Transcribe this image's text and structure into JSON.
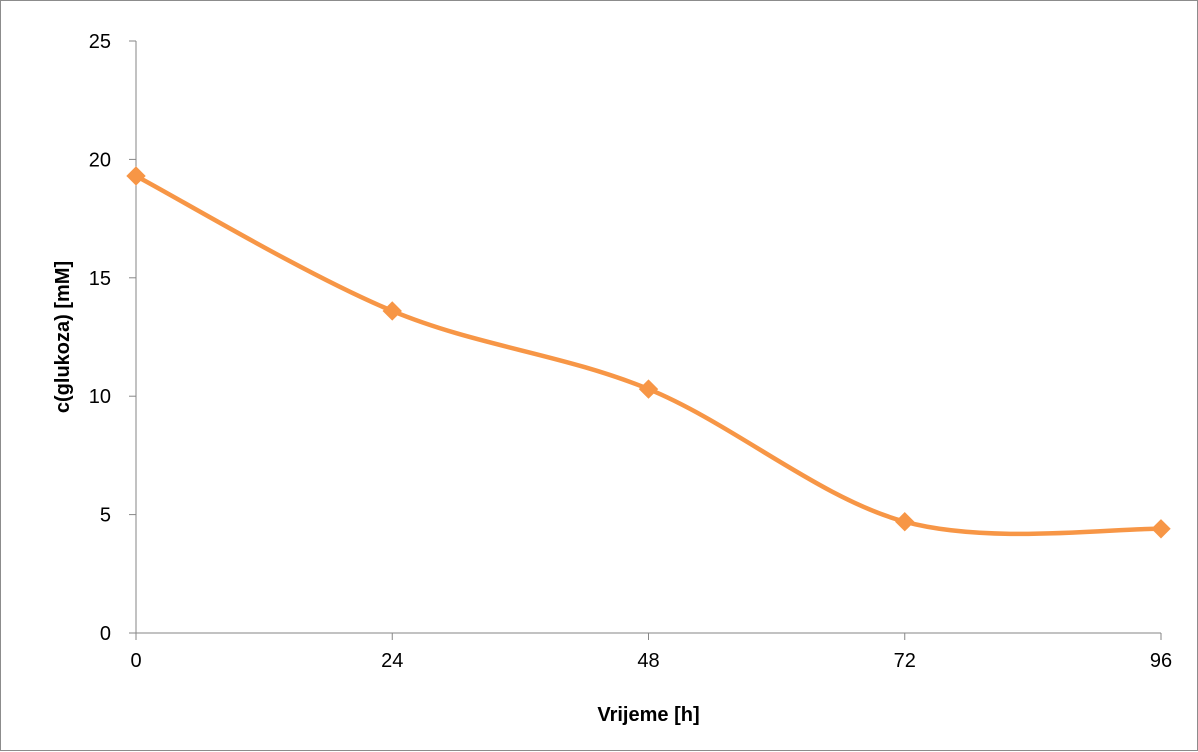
{
  "chart_data": {
    "type": "line",
    "title": "",
    "xlabel": "Vrijeme [h]",
    "ylabel": "c(glukoza) [mM]",
    "x": [
      0,
      24,
      48,
      72,
      96
    ],
    "xticks": [
      "0",
      "24",
      "48",
      "72",
      "96"
    ],
    "yticks": [
      "0",
      "5",
      "10",
      "15",
      "20",
      "25"
    ],
    "ylim": [
      0,
      25
    ],
    "xlim": [
      0,
      96
    ],
    "grid": false,
    "legend": "none",
    "smooth": true,
    "marker": "diamond",
    "series": [
      {
        "values": [
          19.3,
          13.6,
          10.3,
          4.7,
          4.4
        ],
        "color": "#F79646"
      }
    ]
  }
}
